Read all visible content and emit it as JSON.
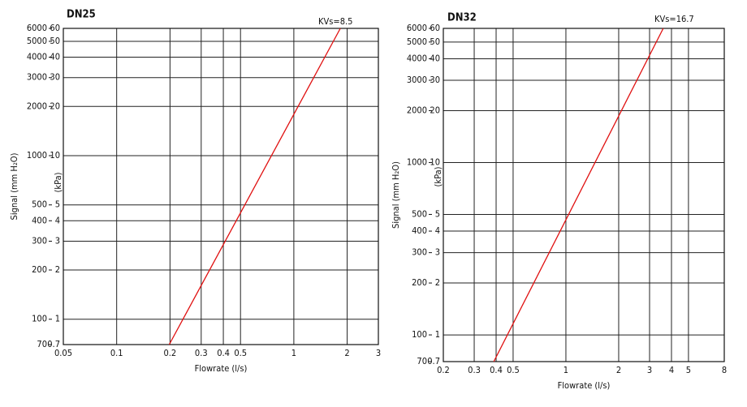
{
  "chart_data": [
    {
      "type": "line",
      "title": "DN25",
      "annotation": "KVs=8.5",
      "xlabel": "Flowrate (l/s)",
      "ylabel": "Signal (mm H₂O)",
      "y2label": "(kPa)",
      "xscale": "log",
      "yscale": "log",
      "grid": true,
      "x": [
        0.198,
        1.83
      ],
      "values": [
        70,
        6000
      ],
      "color": "#e01010",
      "xlim": [
        0.05,
        3
      ],
      "xticks": [
        0.05,
        0.1,
        0.2,
        0.3,
        0.4,
        0.5,
        1,
        2,
        3
      ],
      "ylim": [
        70,
        6000
      ],
      "yticks": [
        70,
        100,
        200,
        300,
        400,
        500,
        1000,
        2000,
        3000,
        4000,
        5000,
        6000
      ],
      "y2lim": [
        0.7,
        60
      ],
      "y2ticks": [
        0.7,
        1,
        2,
        3,
        4,
        5,
        10,
        20,
        30,
        40,
        50,
        60
      ]
    },
    {
      "type": "line",
      "title": "DN32",
      "annotation": "KVs=16.7",
      "xlabel": "Flowrate (l/s)",
      "ylabel": "Signal (mm H₂O)",
      "y2label": "(kPa)",
      "xscale": "log",
      "yscale": "log",
      "grid": true,
      "x": [
        0.388,
        3.59
      ],
      "values": [
        70,
        6000
      ],
      "color": "#e01010",
      "xlim": [
        0.2,
        8
      ],
      "xticks": [
        0.2,
        0.3,
        0.4,
        0.5,
        1,
        2,
        3,
        4,
        5,
        8
      ],
      "ylim": [
        70,
        6000
      ],
      "yticks": [
        70,
        100,
        200,
        300,
        400,
        500,
        1000,
        2000,
        3000,
        4000,
        5000,
        6000
      ],
      "y2lim": [
        0.7,
        60
      ],
      "y2ticks": [
        0.7,
        1,
        2,
        3,
        4,
        5,
        10,
        20,
        30,
        40,
        50,
        60
      ]
    }
  ]
}
